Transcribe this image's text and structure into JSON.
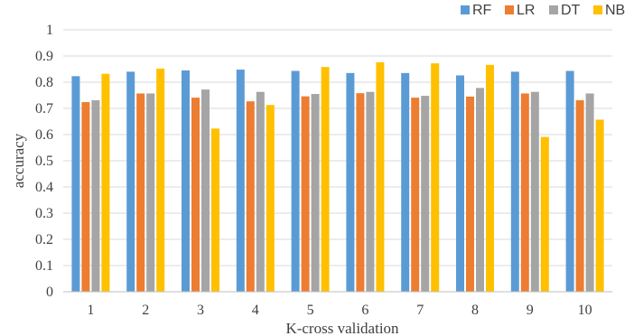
{
  "chart_data": {
    "type": "bar",
    "title": "",
    "xlabel": "K-cross validation",
    "ylabel": "accuracy",
    "ylim": [
      0,
      1
    ],
    "yticks": [
      "0",
      "0.1",
      "0.2",
      "0.3",
      "0.4",
      "0.5",
      "0.6",
      "0.7",
      "0.8",
      "0.9",
      "1"
    ],
    "grid": true,
    "legend_position": "top-right",
    "categories": [
      "1",
      "2",
      "3",
      "4",
      "5",
      "6",
      "7",
      "8",
      "9",
      "10"
    ],
    "series": [
      {
        "name": "RF",
        "color": "#5B9BD5",
        "values": [
          0.823,
          0.84,
          0.845,
          0.848,
          0.843,
          0.835,
          0.835,
          0.826,
          0.84,
          0.843
        ]
      },
      {
        "name": "LR",
        "color": "#ED7D31",
        "values": [
          0.724,
          0.757,
          0.741,
          0.727,
          0.746,
          0.758,
          0.741,
          0.745,
          0.757,
          0.731
        ]
      },
      {
        "name": "DT",
        "color": "#A5A5A5",
        "values": [
          0.731,
          0.757,
          0.772,
          0.763,
          0.755,
          0.763,
          0.748,
          0.778,
          0.763,
          0.757
        ]
      },
      {
        "name": "NB",
        "color": "#FFC000",
        "values": [
          0.832,
          0.852,
          0.623,
          0.713,
          0.858,
          0.876,
          0.872,
          0.866,
          0.591,
          0.657
        ]
      }
    ]
  }
}
